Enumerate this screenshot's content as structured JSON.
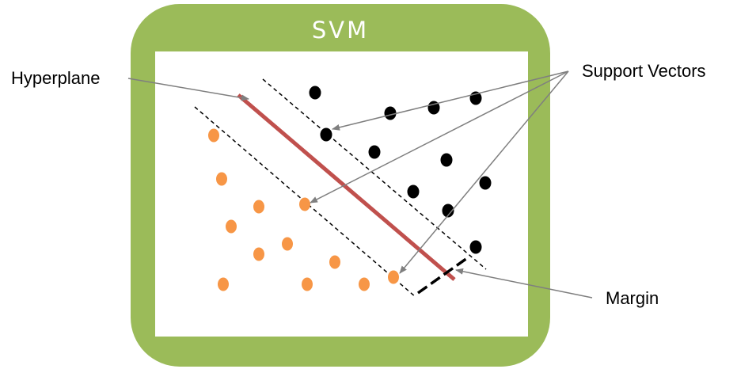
{
  "diagram": {
    "title": "SVM",
    "labels": {
      "hyperplane": "Hyperplane",
      "support_vectors": "Support Vectors",
      "margin": "Margin"
    },
    "colors": {
      "frame": "#9bbb59",
      "background": "#ffffff",
      "hyperplane": "#c0504d",
      "class_a_points": "#f79646",
      "class_b_points": "#000000",
      "margin_lines": "#000000",
      "callout_arrows": "#7f7f7f"
    },
    "class_a_point_count": 12,
    "class_b_point_count": 12,
    "support_vector_count": 3
  }
}
